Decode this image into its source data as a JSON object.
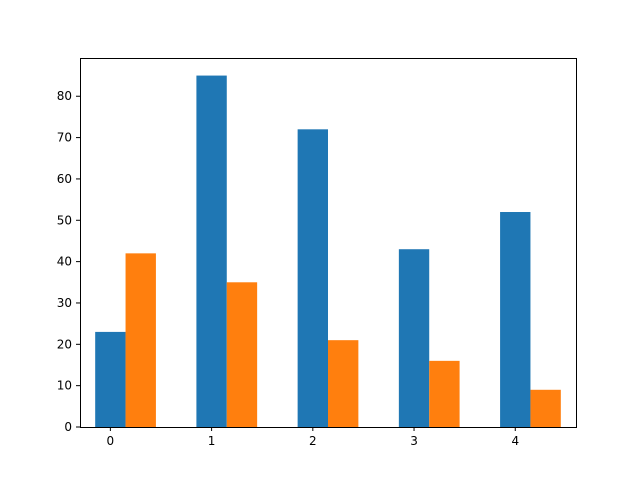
{
  "chart_data": {
    "type": "bar",
    "title": "",
    "xlabel": "",
    "ylabel": "",
    "x": [
      0,
      1,
      2,
      3,
      4
    ],
    "x_tick_labels": [
      "0",
      "1",
      "2",
      "3",
      "4"
    ],
    "y_ticks": [
      0,
      10,
      20,
      30,
      40,
      50,
      60,
      70,
      80
    ],
    "y_tick_labels": [
      "0",
      "10",
      "20",
      "30",
      "40",
      "50",
      "60",
      "70",
      "80"
    ],
    "ylim": [
      0,
      89.25
    ],
    "xlim": [
      -0.3,
      4.6
    ],
    "bar_width": 0.3,
    "grid": false,
    "legend": "none",
    "series": [
      {
        "values": [
          23,
          85,
          72,
          43,
          52
        ],
        "color": "#1f77b4",
        "offset": 0
      },
      {
        "values": [
          42,
          35,
          21,
          16,
          9
        ],
        "color": "#ff7f0e",
        "offset": 0.3
      }
    ]
  }
}
